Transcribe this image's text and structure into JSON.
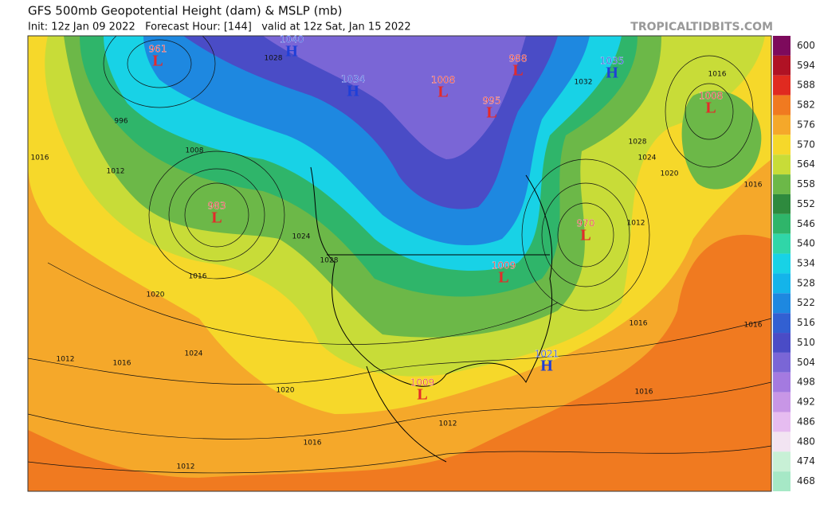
{
  "header": {
    "title": "GFS 500mb Geopotential Height (dam) & MSLP (mb)",
    "subtitle": "Init: 12z Jan 09 2022   Forecast Hour: [144]   valid at 12z Sat, Jan 15 2022",
    "site": "TROPICALTIDBITS.COM"
  },
  "colorbar": {
    "levels": [
      600,
      594,
      588,
      582,
      576,
      570,
      564,
      558,
      552,
      546,
      540,
      534,
      528,
      522,
      516,
      510,
      504,
      498,
      492,
      486,
      480,
      474,
      468
    ],
    "colors": [
      "#7d0a5c",
      "#b01224",
      "#e02a20",
      "#f07a20",
      "#f5a82a",
      "#f6d82a",
      "#c8dc38",
      "#6cb848",
      "#2e8a3e",
      "#2fb56a",
      "#30d6a8",
      "#18d2e6",
      "#14b4ea",
      "#1e88e0",
      "#3260d2",
      "#4a4cc6",
      "#7a66d6",
      "#a47ae0",
      "#c896e6",
      "#e6bcf0",
      "#f2e4f2",
      "#c8f0d6",
      "#a6e8c6"
    ]
  },
  "centers": [
    {
      "type": "L",
      "value": 961
    },
    {
      "type": "H",
      "value": 1040
    },
    {
      "type": "H",
      "value": 1034
    },
    {
      "type": "L",
      "value": 1008
    },
    {
      "type": "L",
      "value": 988
    },
    {
      "type": "L",
      "value": 995
    },
    {
      "type": "H",
      "value": 1035
    },
    {
      "type": "L",
      "value": 1008
    },
    {
      "type": "L",
      "value": 983
    },
    {
      "type": "L",
      "value": 970
    },
    {
      "type": "L",
      "value": 1009
    },
    {
      "type": "H",
      "value": 1021
    },
    {
      "type": "L",
      "value": 1009
    }
  ],
  "isobar_labels": [
    1016,
    1012,
    1020,
    1024,
    1016,
    1012,
    1020,
    1016,
    1012,
    1016,
    1016,
    1016,
    1012,
    1020,
    1024,
    1028,
    1016,
    1016,
    1032,
    1024,
    1028,
    1016,
    1012,
    996,
    1008,
    1028
  ]
}
